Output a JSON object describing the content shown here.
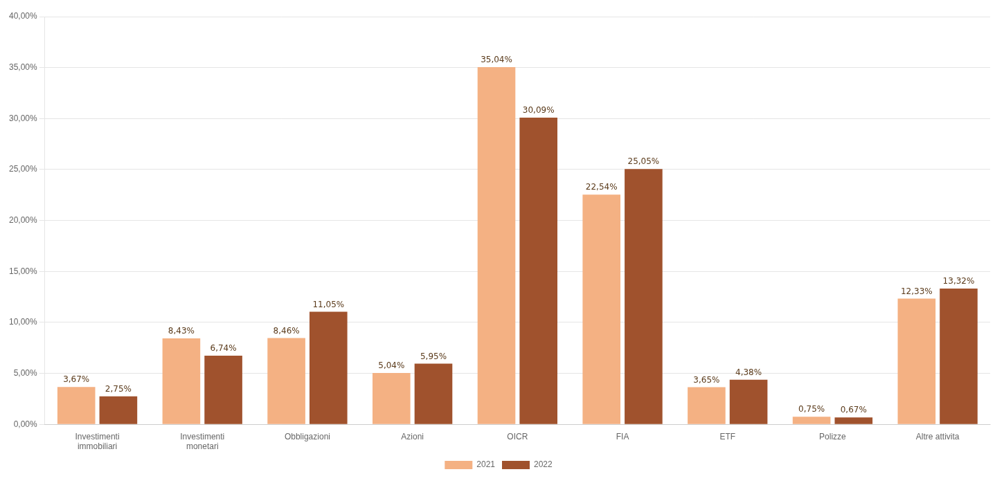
{
  "chart_data": {
    "type": "bar",
    "categories": [
      "Investimenti\nimmobiliari",
      "Investimenti\nmonetari",
      "Obbligazioni",
      "Azioni",
      "OICR",
      "FIA",
      "ETF",
      "Polizze",
      "Altre attivita"
    ],
    "series": [
      {
        "name": "2021",
        "color": "#F4B183",
        "values": [
          3.67,
          8.43,
          8.46,
          5.04,
          35.04,
          22.54,
          3.65,
          0.75,
          12.33
        ],
        "value_labels": [
          "3,67%",
          "8,43%",
          "8,46%",
          "5,04%",
          "35,04%",
          "22,54%",
          "3,65%",
          "0,75%",
          "12,33%"
        ]
      },
      {
        "name": "2022",
        "color": "#A0522D",
        "values": [
          2.75,
          6.74,
          11.05,
          5.95,
          30.09,
          25.05,
          4.38,
          0.67,
          13.32
        ],
        "value_labels": [
          "2,75%",
          "6,74%",
          "11,05%",
          "5,95%",
          "30,09%",
          "25,05%",
          "4,38%",
          "0,67%",
          "13,32%"
        ]
      }
    ],
    "ylim": [
      0,
      40
    ],
    "yticks": [
      {
        "value": 0,
        "label": "0,00%"
      },
      {
        "value": 5,
        "label": "5,00%"
      },
      {
        "value": 10,
        "label": "10,00%"
      },
      {
        "value": 15,
        "label": "15,00%"
      },
      {
        "value": 20,
        "label": "20,00%"
      },
      {
        "value": 25,
        "label": "25,00%"
      },
      {
        "value": 30,
        "label": "30,00%"
      },
      {
        "value": 35,
        "label": "35,00%"
      },
      {
        "value": 40,
        "label": "40,00%"
      }
    ],
    "grid": true,
    "legend": "bottom",
    "data_labels": true
  }
}
